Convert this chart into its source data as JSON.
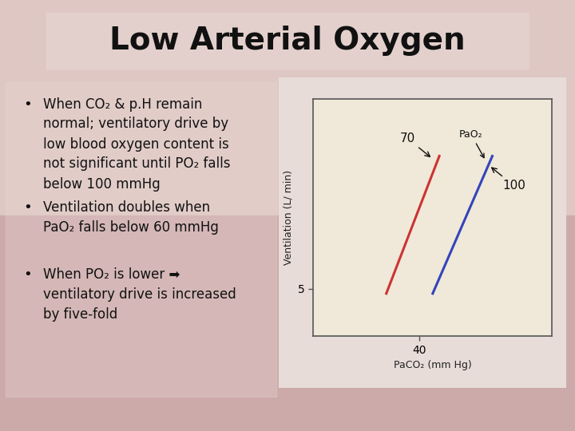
{
  "title": "Low Arterial Oxygen",
  "title_fontsize": 28,
  "title_fontweight": "bold",
  "title_color": "#111111",
  "bg_color_top": "#e8c8c0",
  "bg_color_bottom": "#d4a098",
  "bullet_points_1": "When CO₂ & p.H remain\nnormal; ventilatory drive by\nlow blood oxygen content is\nnot significant until PO₂ falls\nbelow 100 mmHg",
  "bullet_points_2": "Ventilation doubles when\nPaO₂ falls below 60 mmHg",
  "bullet_points_3": "When PO₂ is lower ➡\nventilatory drive is increased\nby five-fold",
  "bullet_fontsize": 12,
  "bullet_color": "#111111",
  "chart_bg": "#f0e8d8",
  "chart_border": "#555555",
  "red_line_x": [
    35,
    43
  ],
  "red_line_y": [
    4.5,
    19.0
  ],
  "blue_line_x": [
    42,
    51
  ],
  "blue_line_y": [
    4.5,
    19.0
  ],
  "xlabel": "PaCO₂ (mm Hg)",
  "ylabel": "Ventilation (L/ min)",
  "xtick_val": 40,
  "ytick_val": 5,
  "label_70": "70",
  "label_100": "100",
  "label_PaO2": "PaO₂",
  "chart_fontsize": 9,
  "line_width": 2.2,
  "xlim": [
    24,
    60
  ],
  "ylim": [
    0,
    25
  ]
}
